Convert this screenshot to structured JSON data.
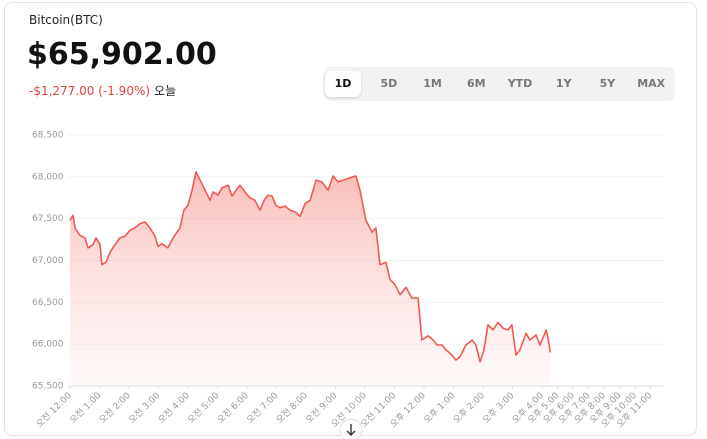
{
  "header": {
    "title": "Bitcoin(BTC)",
    "price": "$65,902.00",
    "change": "-$1,277.00 (-1.90%)",
    "period": "오늘"
  },
  "tabs": {
    "items": [
      "1D",
      "5D",
      "1M",
      "6M",
      "YTD",
      "1Y",
      "5Y",
      "MAX"
    ],
    "selected": "1D"
  },
  "chart_data": {
    "type": "area",
    "color": "#ee5a52",
    "grid": true,
    "ylim": [
      65500,
      68500
    ],
    "yticks": [
      {
        "value": 65500,
        "label": "65,500"
      },
      {
        "value": 66000,
        "label": "66,000"
      },
      {
        "value": 66500,
        "label": "66,500"
      },
      {
        "value": 67000,
        "label": "67,000"
      },
      {
        "value": 67500,
        "label": "67,500"
      },
      {
        "value": 68000,
        "label": "68,000"
      },
      {
        "value": 68500,
        "label": "68,500"
      }
    ],
    "xlim": [
      0,
      23
    ],
    "xticks": [
      {
        "value": 0,
        "label": "오전 12:00"
      },
      {
        "value": 1,
        "label": "오전 1:00"
      },
      {
        "value": 2,
        "label": "오전 2:00"
      },
      {
        "value": 3,
        "label": "오전 3:00"
      },
      {
        "value": 4,
        "label": "오전 4:00"
      },
      {
        "value": 5,
        "label": "오전 5:00"
      },
      {
        "value": 6,
        "label": "오전 6:00"
      },
      {
        "value": 7,
        "label": "오전 7:00"
      },
      {
        "value": 8,
        "label": "오전 8:00"
      },
      {
        "value": 9,
        "label": "오전 9:00"
      },
      {
        "value": 10,
        "label": "오전 10:00"
      },
      {
        "value": 11,
        "label": "오전 11:00"
      },
      {
        "value": 12,
        "label": "오후 12:00"
      },
      {
        "value": 13,
        "label": "오후 1:00"
      },
      {
        "value": 14,
        "label": "오후 2:00"
      },
      {
        "value": 15,
        "label": "오후 3:00"
      },
      {
        "value": 16,
        "label": "오후 4:00"
      },
      {
        "value": 17,
        "label": "오후 5:00"
      },
      {
        "value": 18,
        "label": "오후 6:00"
      },
      {
        "value": 19,
        "label": "오후 7:00"
      },
      {
        "value": 20,
        "label": "오후 8:00"
      },
      {
        "value": 21,
        "label": "오후 9:00"
      },
      {
        "value": 22,
        "label": "오후 10:00"
      },
      {
        "value": 23,
        "label": "오후 11:00"
      }
    ],
    "x": [
      0,
      0.1,
      0.17,
      0.34,
      0.51,
      0.61,
      0.78,
      0.88,
      1.02,
      1.08,
      1.22,
      1.36,
      1.53,
      1.69,
      1.86,
      2.03,
      2.2,
      2.37,
      2.54,
      2.71,
      2.88,
      2.98,
      3.12,
      3.32,
      3.46,
      3.59,
      3.73,
      3.86,
      4,
      4.14,
      4.27,
      4.41,
      4.58,
      4.75,
      4.85,
      5.02,
      5.15,
      5.36,
      5.49,
      5.63,
      5.76,
      5.93,
      6.1,
      6.27,
      6.44,
      6.58,
      6.71,
      6.85,
      6.98,
      7.12,
      7.29,
      7.46,
      7.63,
      7.8,
      7.97,
      8.14,
      8.34,
      8.54,
      8.75,
      8.92,
      9.08,
      9.25,
      9.49,
      9.69,
      9.83,
      10.03,
      10.24,
      10.37,
      10.51,
      10.71,
      10.85,
      11.02,
      11.19,
      11.39,
      11.59,
      11.8,
      11.93,
      12.14,
      12.31,
      12.44,
      12.61,
      12.75,
      12.95,
      13.08,
      13.22,
      13.42,
      13.63,
      13.76,
      13.9,
      14.03,
      14.17,
      14.34,
      14.51,
      14.68,
      14.85,
      14.98,
      15.12,
      15.25,
      15.46,
      15.59,
      15.8,
      15.93,
      16.14,
      16.27,
      16.41,
      16.54
    ],
    "values": [
      67480,
      67540,
      67390,
      67300,
      67270,
      67150,
      67190,
      67270,
      67190,
      66950,
      66980,
      67100,
      67190,
      67270,
      67290,
      67360,
      67390,
      67440,
      67460,
      67390,
      67290,
      67170,
      67200,
      67150,
      67250,
      67320,
      67390,
      67600,
      67660,
      67840,
      68060,
      67960,
      67840,
      67720,
      67820,
      67780,
      67870,
      67900,
      67770,
      67840,
      67900,
      67820,
      67750,
      67720,
      67600,
      67720,
      67780,
      67770,
      67660,
      67630,
      67650,
      67600,
      67580,
      67530,
      67680,
      67720,
      67960,
      67940,
      67840,
      68010,
      67940,
      67960,
      67990,
      68010,
      67840,
      67480,
      67340,
      67390,
      66950,
      66980,
      66770,
      66710,
      66590,
      66680,
      66550,
      66550,
      66050,
      66100,
      66050,
      65990,
      65990,
      65930,
      65870,
      65810,
      65850,
      65990,
      66050,
      65990,
      65790,
      65930,
      66230,
      66170,
      66260,
      66190,
      66170,
      66230,
      65870,
      65930,
      66130,
      66050,
      66110,
      65990,
      66110,
      66170,
      66050,
      65900
    ]
  }
}
